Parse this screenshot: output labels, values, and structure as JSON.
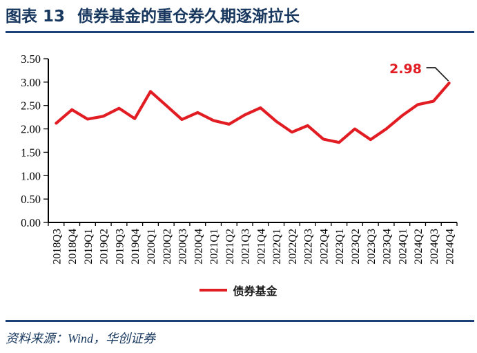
{
  "header": {
    "figure_label": "图表 13",
    "title": "债券基金的重仓券久期逐渐拉长"
  },
  "chart_data": {
    "type": "line",
    "title": "",
    "xlabel": "",
    "ylabel": "",
    "categories": [
      "2018Q3",
      "2018Q4",
      "2019Q1",
      "2019Q2",
      "2019Q3",
      "2019Q4",
      "2020Q1",
      "2020Q2",
      "2020Q3",
      "2020Q4",
      "2021Q1",
      "2021Q2",
      "2021Q3",
      "2021Q4",
      "2022Q1",
      "2022Q2",
      "2022Q3",
      "2022Q4",
      "2023Q1",
      "2023Q2",
      "2023Q3",
      "2023Q4",
      "2024Q1",
      "2024Q2",
      "2024Q3",
      "2024Q4"
    ],
    "series": [
      {
        "name": "债券基金",
        "color": "#e11d23",
        "values": [
          2.12,
          2.41,
          2.21,
          2.27,
          2.44,
          2.22,
          2.8,
          2.5,
          2.2,
          2.35,
          2.18,
          2.1,
          2.3,
          2.45,
          2.16,
          1.93,
          2.07,
          1.78,
          1.71,
          2.0,
          1.77,
          2.0,
          2.28,
          2.52,
          2.59,
          2.98
        ]
      }
    ],
    "ylim": [
      0,
      3.5
    ],
    "ytick_step": 0.5,
    "ytick_labels": [
      "0.00",
      "0.50",
      "1.00",
      "1.50",
      "2.00",
      "2.50",
      "3.00",
      "3.50"
    ],
    "grid": false,
    "legend_position": "bottom",
    "annotation": {
      "text": "2.98",
      "target": "2024Q4"
    }
  },
  "footer": {
    "source_label": "资料来源：Wind，华创证券"
  },
  "colors": {
    "navy_title": "#17375e",
    "navy_rule": "#1b4177",
    "red": "#e11d23",
    "axis_black": "#000000",
    "callout_black": "#1a1a1a"
  }
}
